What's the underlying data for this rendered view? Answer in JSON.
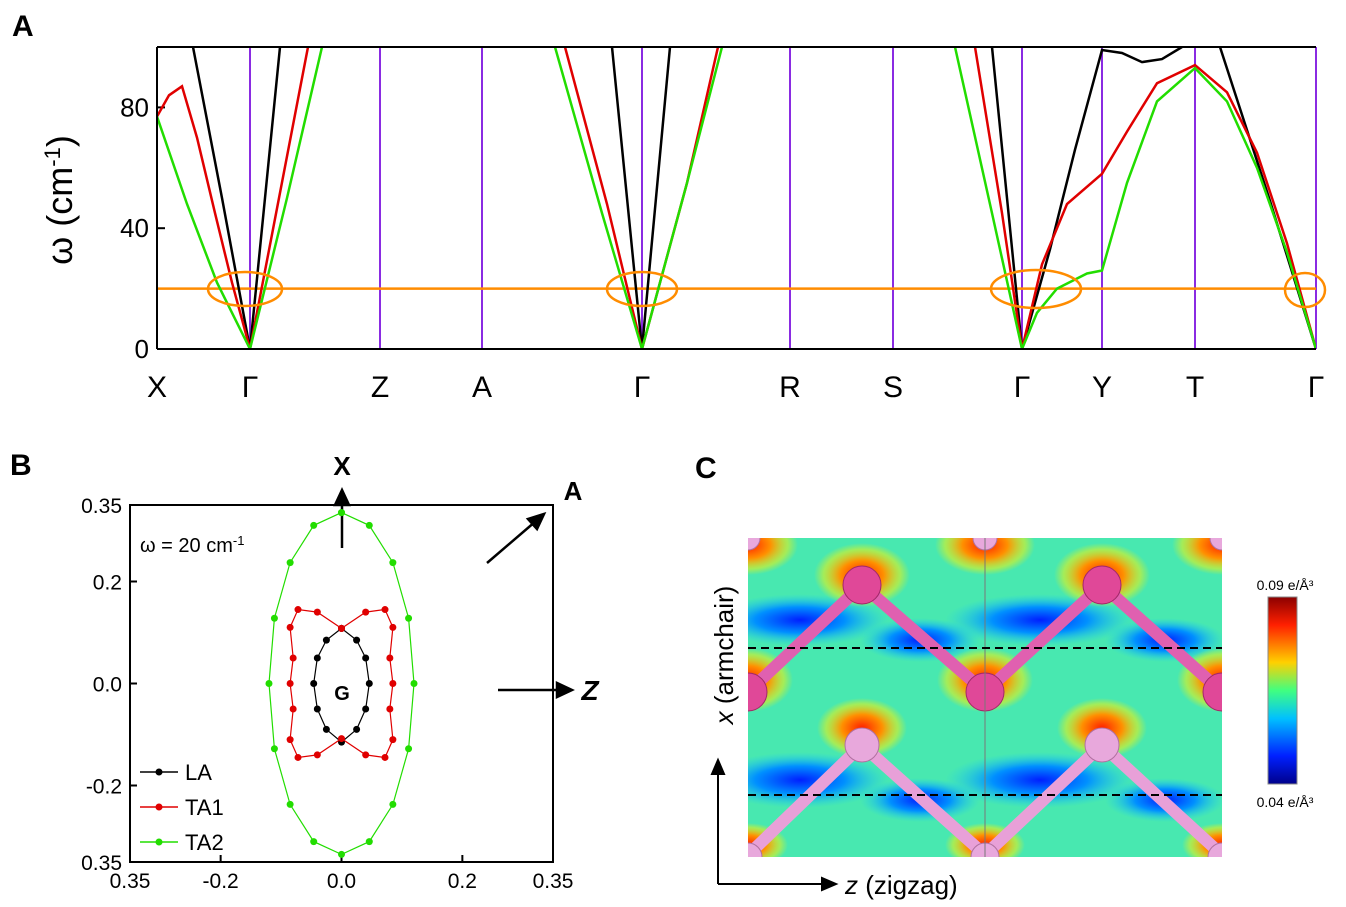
{
  "chart_data": [
    {
      "type": "line",
      "label": "A",
      "ylabel_parts": [
        "ω (cm",
        "-1",
        ")"
      ],
      "xlim": [
        0,
        11.59
      ],
      "xticks": [
        {
          "value": 0,
          "label": "X"
        },
        {
          "value": 0.93,
          "label": "Γ"
        },
        {
          "value": 2.23,
          "label": "Z"
        },
        {
          "value": 3.25,
          "label": "A"
        },
        {
          "value": 4.85,
          "label": "Γ"
        },
        {
          "value": 6.33,
          "label": "R"
        },
        {
          "value": 7.36,
          "label": "S"
        },
        {
          "value": 8.65,
          "label": "Γ"
        },
        {
          "value": 9.45,
          "label": "Y"
        },
        {
          "value": 10.38,
          "label": "T"
        },
        {
          "value": 11.59,
          "label": "Γ"
        }
      ],
      "ylim": [
        0,
        100
      ],
      "yticks": [
        0,
        40,
        80
      ],
      "vline_color": "#8a2be2",
      "hline": {
        "value": 20,
        "color": "#ff8c00"
      },
      "series": [
        {
          "color": "#000000",
          "x": [
            0.36,
            0.65,
            0.93,
            1.08,
            1.23,
            null,
            4.55,
            4.7,
            4.85,
            4.99,
            5.13,
            null,
            8.35,
            8.5,
            8.65,
            8.93,
            9.18,
            9.45,
            9.65,
            9.85,
            10.05,
            10.25,
            null,
            10.63,
            11.13,
            11.59
          ],
          "values": [
            100,
            50,
            0,
            50,
            100,
            null,
            100,
            50,
            0,
            50,
            100,
            null,
            100,
            50,
            0,
            33,
            66,
            99,
            98,
            95,
            96,
            100,
            null,
            100,
            49,
            0
          ]
        },
        {
          "color": "#e00000",
          "x": [
            0,
            0.12,
            0.25,
            0.4,
            0.58,
            0.75,
            0.93,
            1.22,
            1.51,
            null,
            4.08,
            4.5,
            4.85,
            5.3,
            5.61,
            null,
            8.18,
            8.45,
            8.65,
            8.85,
            9.1,
            9.45,
            9.7,
            10.0,
            10.38,
            10.7,
            11.0,
            11.3,
            11.59
          ],
          "values": [
            77,
            84,
            87,
            70,
            45,
            22,
            0,
            50,
            100,
            null,
            100,
            48,
            0,
            55,
            100,
            null,
            100,
            45,
            0,
            28,
            48,
            58,
            72,
            88,
            94,
            85,
            65,
            35,
            0
          ]
        },
        {
          "color": "#22dd00",
          "x": [
            0,
            0.3,
            0.6,
            0.93,
            1.3,
            1.65,
            null,
            3.98,
            4.45,
            4.85,
            5.3,
            5.65,
            null,
            7.98,
            8.35,
            8.65,
            8.8,
            9.0,
            9.3,
            9.45,
            9.7,
            10.0,
            10.38,
            10.7,
            11.0,
            11.3,
            11.59
          ],
          "values": [
            77,
            48,
            22,
            0,
            50,
            100,
            null,
            100,
            45,
            0,
            55,
            100,
            null,
            100,
            45,
            0,
            12,
            20,
            25,
            26,
            55,
            82,
            93,
            82,
            60,
            32,
            0
          ]
        }
      ]
    },
    {
      "type": "contour",
      "label": "B",
      "annotation_parts": [
        "ω = 20 cm",
        "-1"
      ],
      "center_label": "G",
      "direction_labels": {
        "up": "X",
        "diagonal": "A",
        "right": "Z"
      },
      "xlim": [
        -0.35,
        0.35
      ],
      "xticks": [
        {
          "value": -0.35,
          "label": "0.35"
        },
        -0.2,
        {
          "value": 0,
          "label": "0.0"
        },
        0.2,
        0.35
      ],
      "ylim": [
        -0.35,
        0.35
      ],
      "yticks": [
        0.35,
        0.2,
        {
          "value": 0,
          "label": "0.0"
        },
        -0.2,
        {
          "value": -0.35,
          "label": "0.35"
        }
      ],
      "legend": "lower left",
      "series": [
        {
          "name": "LA",
          "color": "#000000",
          "x": [
            0,
            0.025,
            0.04,
            0.046,
            0.04,
            0.025,
            0,
            -0.025,
            -0.04,
            -0.046,
            -0.04,
            -0.025,
            0
          ],
          "values": [
            0.108,
            0.085,
            0.05,
            0,
            -0.05,
            -0.09,
            -0.115,
            -0.09,
            -0.05,
            0,
            0.05,
            0.085,
            0.108
          ]
        },
        {
          "name": "TA1",
          "color": "#e00000",
          "x": [
            0,
            0.04,
            0.072,
            0.085,
            0.08,
            0.085,
            0.08,
            0.085,
            0.072,
            0.04,
            0,
            -0.04,
            -0.072,
            -0.085,
            -0.08,
            -0.085,
            -0.08,
            -0.085,
            -0.072,
            -0.04,
            0
          ],
          "values": [
            0.108,
            0.14,
            0.145,
            0.11,
            0.05,
            0,
            -0.05,
            -0.11,
            -0.145,
            -0.14,
            -0.108,
            -0.14,
            -0.145,
            -0.11,
            -0.05,
            0,
            0.05,
            0.11,
            0.145,
            0.14,
            0.108
          ]
        },
        {
          "name": "TA2",
          "color": "#22dd00",
          "x": [
            0,
            0.046,
            0.085,
            0.111,
            0.12,
            0.111,
            0.085,
            0.046,
            0,
            -0.046,
            -0.085,
            -0.111,
            -0.12,
            -0.111,
            -0.085,
            -0.046,
            0
          ],
          "values": [
            0.335,
            0.31,
            0.237,
            0.128,
            0,
            -0.128,
            -0.237,
            -0.31,
            -0.335,
            -0.31,
            -0.237,
            -0.128,
            0,
            0.128,
            0.237,
            0.31,
            0.335
          ]
        }
      ]
    }
  ],
  "panel_c": {
    "label": "C",
    "colorbar_max_label": "0.09 e/Å³",
    "colorbar_min_label": "0.04 e/Å³",
    "y_axis_parts": [
      "x",
      " (armchair)"
    ],
    "x_axis_parts": [
      "z",
      " (zigzag)"
    ]
  }
}
